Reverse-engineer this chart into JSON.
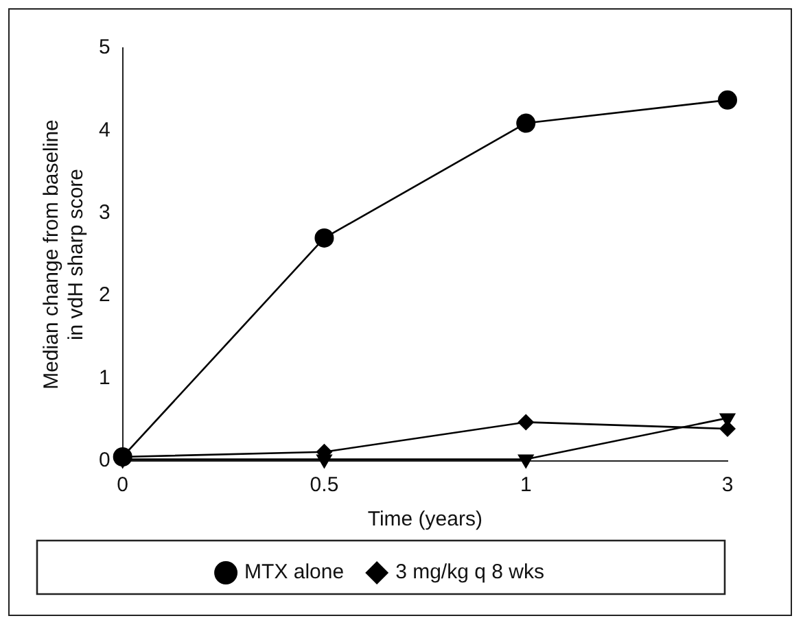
{
  "chart_data": {
    "type": "line",
    "xlabel": "Time (years)",
    "ylabel": "Median change from baseline\nin vdH sharp score",
    "categories": [
      "0",
      "0.5",
      "1",
      "3"
    ],
    "ylim": [
      0,
      5
    ],
    "yticks": [
      0,
      1,
      2,
      3,
      4,
      5
    ],
    "grid": false,
    "legend": "bottom",
    "line_style": "solid",
    "series": [
      {
        "name": "MTX alone",
        "color": "#000000",
        "marker": "circle",
        "values": [
          0.05,
          2.7,
          4.09,
          4.37
        ]
      },
      {
        "name": "3 mg/kg q 8 wks",
        "color": "#000000",
        "marker": "diamond",
        "values": [
          0.05,
          0.11,
          0.47,
          0.39
        ]
      },
      {
        "color": "#000000",
        "marker": "triangle",
        "values": [
          0.02,
          0.02,
          0.02,
          0.52
        ]
      }
    ]
  }
}
